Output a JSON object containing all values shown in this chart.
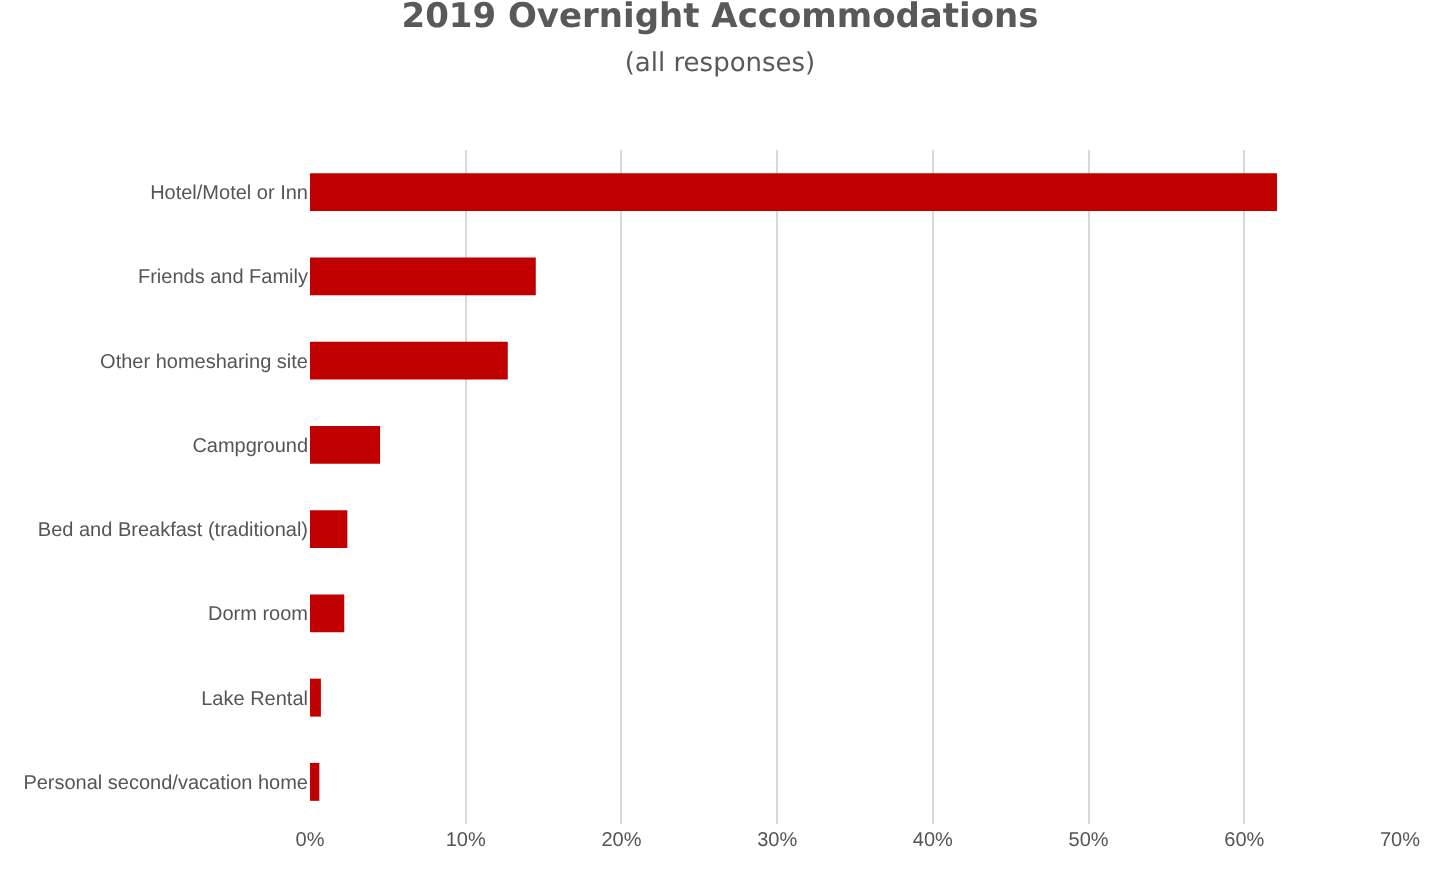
{
  "chart_data": {
    "type": "bar",
    "orientation": "horizontal",
    "title": "2019 Overnight Accommodations",
    "subtitle": "(all responses)",
    "categories": [
      "Hotel/Motel or Inn",
      "Friends and Family",
      "Other homesharing site",
      "Campground",
      "Bed and Breakfast (traditional)",
      "Dorm room",
      "Lake Rental",
      "Personal second/vacation home"
    ],
    "values": [
      62.1,
      14.5,
      12.7,
      4.5,
      2.4,
      2.2,
      0.7,
      0.6
    ],
    "color": "#c00000",
    "xlim": [
      0,
      70
    ],
    "xticks": [
      {
        "value": 0,
        "label": "0%"
      },
      {
        "value": 10,
        "label": "10%"
      },
      {
        "value": 20,
        "label": "20%"
      },
      {
        "value": 30,
        "label": "30%"
      },
      {
        "value": 40,
        "label": "40%"
      },
      {
        "value": 50,
        "label": "50%"
      },
      {
        "value": 60,
        "label": "60%"
      },
      {
        "value": 70,
        "label": "70%"
      }
    ],
    "grid": "x",
    "legend": false
  }
}
